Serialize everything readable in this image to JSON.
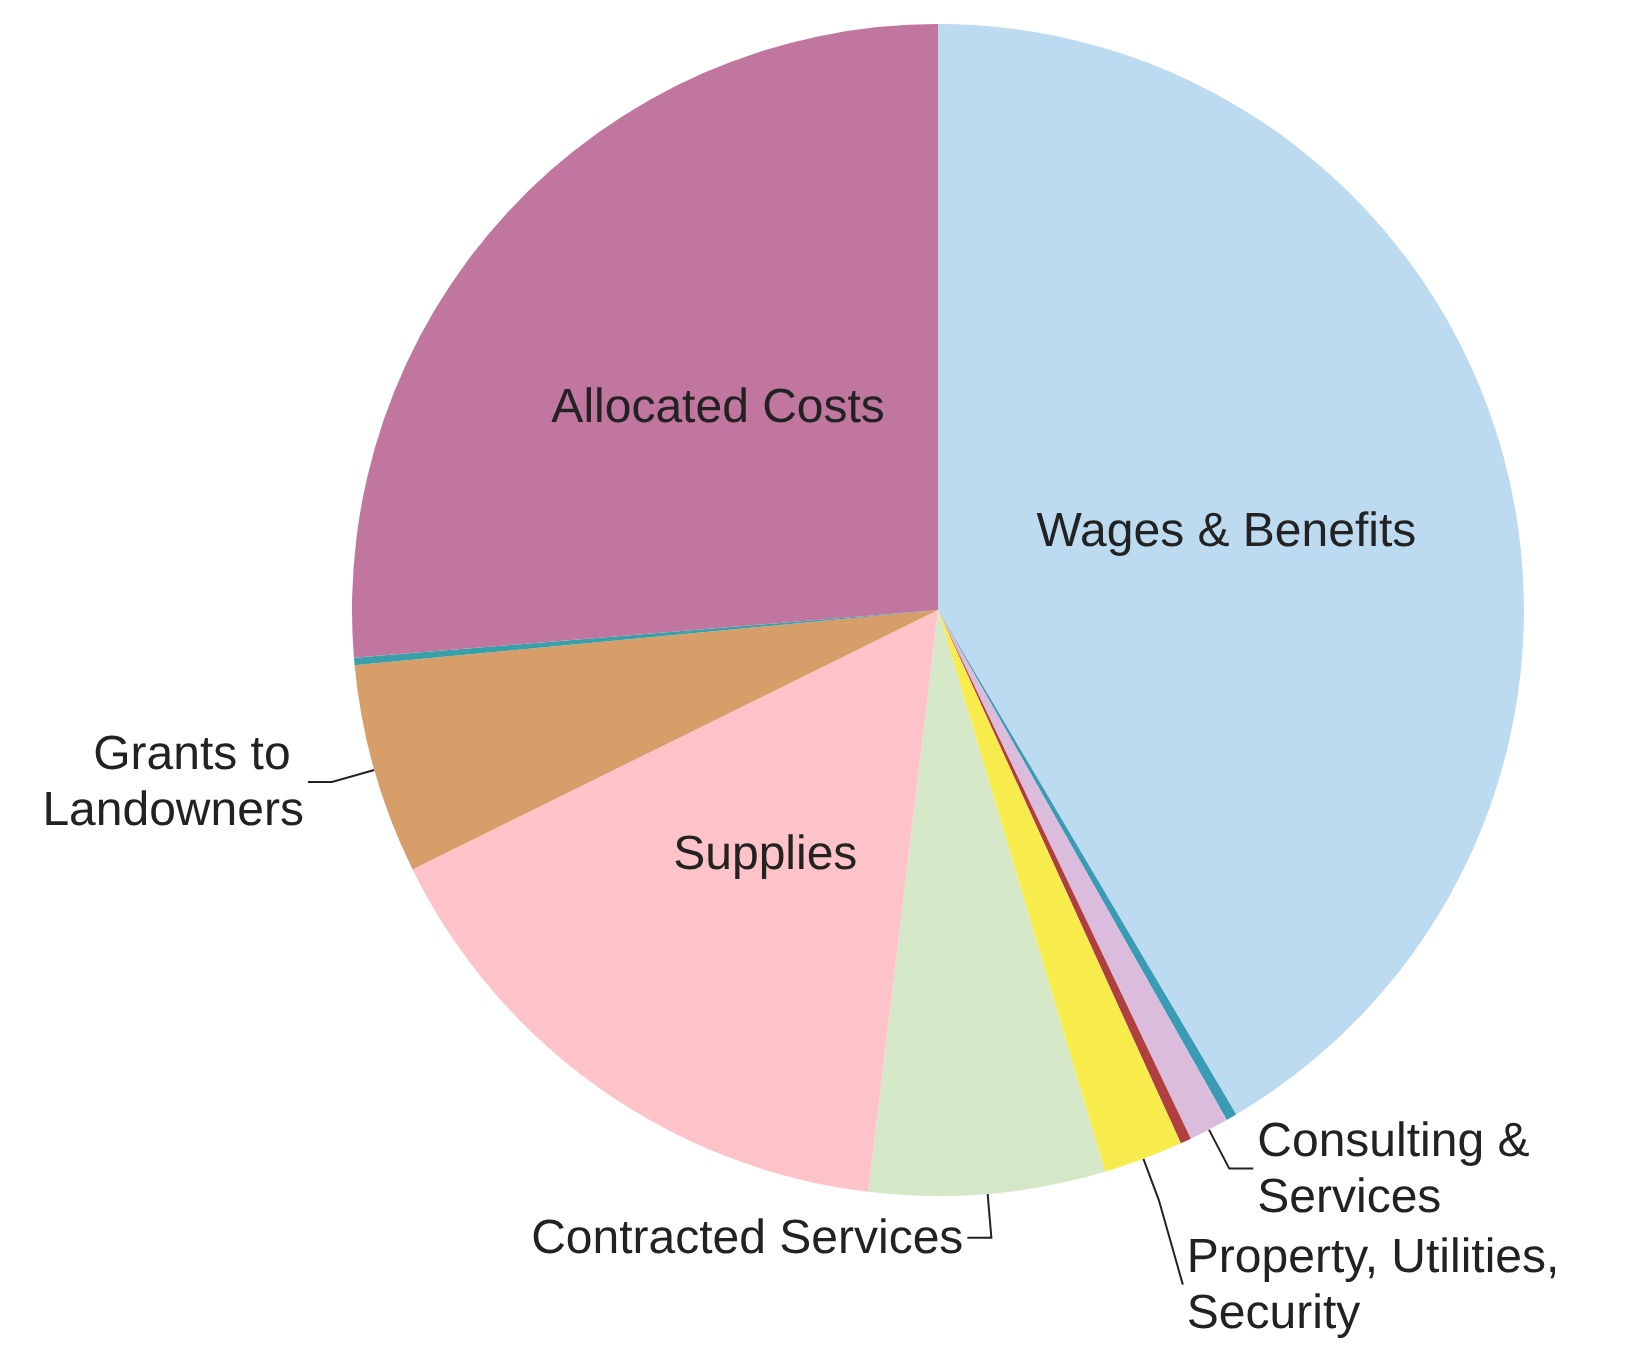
{
  "chart_data": {
    "type": "pie",
    "categories": [
      "Wages & Benefits",
      null,
      "Consulting & Services",
      null,
      "Property, Utilities, Security",
      "Contracted Services",
      "Supplies",
      "Grants to Landowners",
      null,
      "Allocated Costs"
    ],
    "values": [
      41.5,
      0.3,
      1.1,
      0.3,
      2.2,
      6.5,
      15.8,
      5.8,
      0.2,
      26.3
    ],
    "colors": [
      "#bddbf0",
      "#3a9bb5",
      "#dcbcdc",
      "#b04040",
      "#f7ec4b",
      "#d4e8c8",
      "#fec3c8",
      "#d89e6a",
      "#3aa0a8",
      "#c0769e"
    ],
    "legend": false
  }
}
